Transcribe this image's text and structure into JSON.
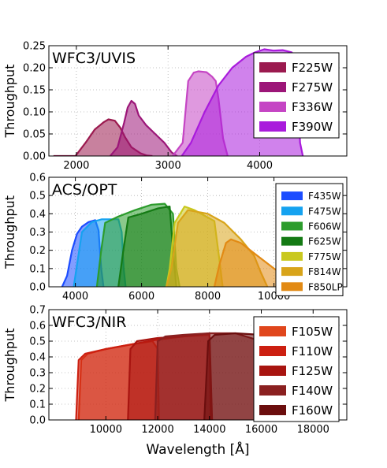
{
  "xlabel": "Wavelength [Å]",
  "chart_data": [
    {
      "type": "area",
      "title": "WFC3/UVIS",
      "ylabel": "Throughput",
      "xlim": [
        1700,
        4950
      ],
      "ylim": [
        0,
        0.25
      ],
      "xticks": [
        2000,
        3000,
        4000
      ],
      "xtick_labels": [
        "2000",
        "3000",
        "4000"
      ],
      "yticks": [
        0,
        0.05,
        0.1,
        0.15,
        0.2,
        0.25
      ],
      "ytick_labels": [
        "0.00",
        "0.05",
        "0.10",
        "0.15",
        "0.20",
        "0.25"
      ],
      "grid": true,
      "legend_position": "top-right",
      "series": [
        {
          "name": "F225W",
          "color": "#9b1a4f",
          "x": [
            1750,
            1990,
            2100,
            2200,
            2300,
            2350,
            2420,
            2480,
            2530,
            2600,
            2700,
            2770,
            2830
          ],
          "y": [
            0,
            0.0,
            0.03,
            0.06,
            0.077,
            0.083,
            0.08,
            0.064,
            0.043,
            0.02,
            0.006,
            0.001,
            0
          ]
        },
        {
          "name": "F275W",
          "color": "#9c1678",
          "x": [
            2370,
            2450,
            2520,
            2560,
            2600,
            2640,
            2680,
            2760,
            2860,
            2960,
            3040,
            3100
          ],
          "y": [
            0,
            0.02,
            0.075,
            0.11,
            0.125,
            0.118,
            0.092,
            0.07,
            0.05,
            0.03,
            0.008,
            0
          ]
        },
        {
          "name": "F336W",
          "color": "#c545c4",
          "x": [
            3050,
            3160,
            3220,
            3280,
            3330,
            3420,
            3480,
            3520,
            3550,
            3600,
            3650
          ],
          "y": [
            0,
            0.03,
            0.17,
            0.189,
            0.192,
            0.19,
            0.18,
            0.17,
            0.13,
            0.04,
            0
          ]
        },
        {
          "name": "F390W",
          "color": "#a91bdc",
          "x": [
            3150,
            3250,
            3400,
            3550,
            3700,
            3850,
            3950,
            4050,
            4150,
            4250,
            4350,
            4400,
            4420,
            4440,
            4470
          ],
          "y": [
            0,
            0.03,
            0.1,
            0.16,
            0.2,
            0.225,
            0.235,
            0.242,
            0.239,
            0.24,
            0.235,
            0.2,
            0.12,
            0.03,
            0
          ]
        }
      ]
    },
    {
      "type": "area",
      "title": "ACS/OPT",
      "ylabel": "Throughput",
      "xlim": [
        3200,
        12200
      ],
      "ylim": [
        0,
        0.6
      ],
      "xticks": [
        4000,
        6000,
        8000,
        10000
      ],
      "xtick_labels": [
        "4000",
        "6000",
        "8000",
        "10000"
      ],
      "yticks": [
        0,
        0.1,
        0.2,
        0.3,
        0.4,
        0.5,
        0.6
      ],
      "ytick_labels": [
        "0.0",
        "0.1",
        "0.2",
        "0.3",
        "0.4",
        "0.5",
        "0.6"
      ],
      "grid": true,
      "legend_position": "top-right",
      "series": [
        {
          "name": "F435W",
          "color": "#1b4cff",
          "x": [
            3600,
            3750,
            3900,
            4050,
            4200,
            4400,
            4600,
            4700,
            4780,
            4850
          ],
          "y": [
            0,
            0.06,
            0.2,
            0.29,
            0.33,
            0.355,
            0.365,
            0.31,
            0.1,
            0
          ]
        },
        {
          "name": "F475W",
          "color": "#15a2f0",
          "x": [
            3950,
            4050,
            4200,
            4500,
            4800,
            5100,
            5300,
            5400,
            5460,
            5520
          ],
          "y": [
            0,
            0.12,
            0.3,
            0.355,
            0.37,
            0.37,
            0.37,
            0.3,
            0.1,
            0
          ]
        },
        {
          "name": "F606W",
          "color": "#2c9c2c",
          "x": [
            4650,
            4780,
            4900,
            5300,
            5800,
            6300,
            6700,
            6950,
            7050,
            7150
          ],
          "y": [
            0,
            0.2,
            0.35,
            0.385,
            0.42,
            0.45,
            0.455,
            0.4,
            0.1,
            0
          ]
        },
        {
          "name": "F625W",
          "color": "#147a14",
          "x": [
            5300,
            5450,
            5600,
            6000,
            6500,
            6850,
            6950,
            7050
          ],
          "y": [
            0,
            0.2,
            0.38,
            0.4,
            0.43,
            0.44,
            0.2,
            0
          ]
        },
        {
          "name": "F775W",
          "color": "#c9c81e",
          "x": [
            6750,
            6850,
            7000,
            7300,
            7600,
            7900,
            8200,
            8350,
            8450
          ],
          "y": [
            0,
            0.1,
            0.35,
            0.44,
            0.42,
            0.39,
            0.36,
            0.15,
            0
          ]
        },
        {
          "name": "F814W",
          "color": "#d8a41a",
          "x": [
            6750,
            6900,
            7100,
            7400,
            8000,
            8500,
            9000,
            9400,
            9600,
            9800
          ],
          "y": [
            0,
            0.1,
            0.35,
            0.42,
            0.4,
            0.35,
            0.26,
            0.17,
            0.08,
            0
          ]
        },
        {
          "name": "F850LP",
          "color": "#e28a14",
          "x": [
            8200,
            8350,
            8550,
            8700,
            9000,
            9500,
            10000,
            10500,
            11000
          ],
          "y": [
            0,
            0.12,
            0.24,
            0.26,
            0.24,
            0.17,
            0.1,
            0.04,
            0
          ]
        }
      ]
    },
    {
      "type": "area",
      "title": "WFC3/NIR",
      "ylabel": "Throughput",
      "xlim": [
        7800,
        19300
      ],
      "ylim": [
        0,
        0.7
      ],
      "xticks": [
        10000,
        12000,
        14000,
        16000,
        18000
      ],
      "xtick_labels": [
        "10000",
        "12000",
        "14000",
        "16000",
        "18000"
      ],
      "yticks": [
        0,
        0.1,
        0.2,
        0.3,
        0.4,
        0.5,
        0.6,
        0.7
      ],
      "ytick_labels": [
        "0.0",
        "0.1",
        "0.2",
        "0.3",
        "0.4",
        "0.5",
        "0.6",
        "0.7"
      ],
      "grid": true,
      "legend_position": "top-right",
      "series": [
        {
          "name": "F105W",
          "color": "#e0461c",
          "x": [
            8950,
            9050,
            9300,
            10000,
            11000,
            11800,
            12000,
            12050
          ],
          "y": [
            0,
            0.38,
            0.42,
            0.45,
            0.48,
            0.5,
            0.45,
            0
          ]
        },
        {
          "name": "F110W",
          "color": "#cc1f10",
          "x": [
            8850,
            8950,
            9200,
            10000,
            11000,
            12000,
            13000,
            14000,
            14050
          ],
          "y": [
            0,
            0.38,
            0.42,
            0.45,
            0.48,
            0.51,
            0.53,
            0.54,
            0
          ]
        },
        {
          "name": "F125W",
          "color": "#a81410",
          "x": [
            10850,
            10950,
            11200,
            12000,
            13000,
            14000,
            14100
          ],
          "y": [
            0,
            0.45,
            0.5,
            0.52,
            0.53,
            0.55,
            0
          ]
        },
        {
          "name": "F140W",
          "color": "#8a2020",
          "x": [
            11900,
            12000,
            12300,
            13000,
            14000,
            15000,
            16000,
            16050
          ],
          "y": [
            0,
            0.5,
            0.53,
            0.54,
            0.55,
            0.55,
            0.5,
            0
          ]
        },
        {
          "name": "F160W",
          "color": "#6b0e0e",
          "x": [
            13800,
            13950,
            14200,
            15000,
            16000,
            16800,
            16900
          ],
          "y": [
            0,
            0.5,
            0.54,
            0.55,
            0.54,
            0.52,
            0
          ]
        }
      ]
    }
  ]
}
